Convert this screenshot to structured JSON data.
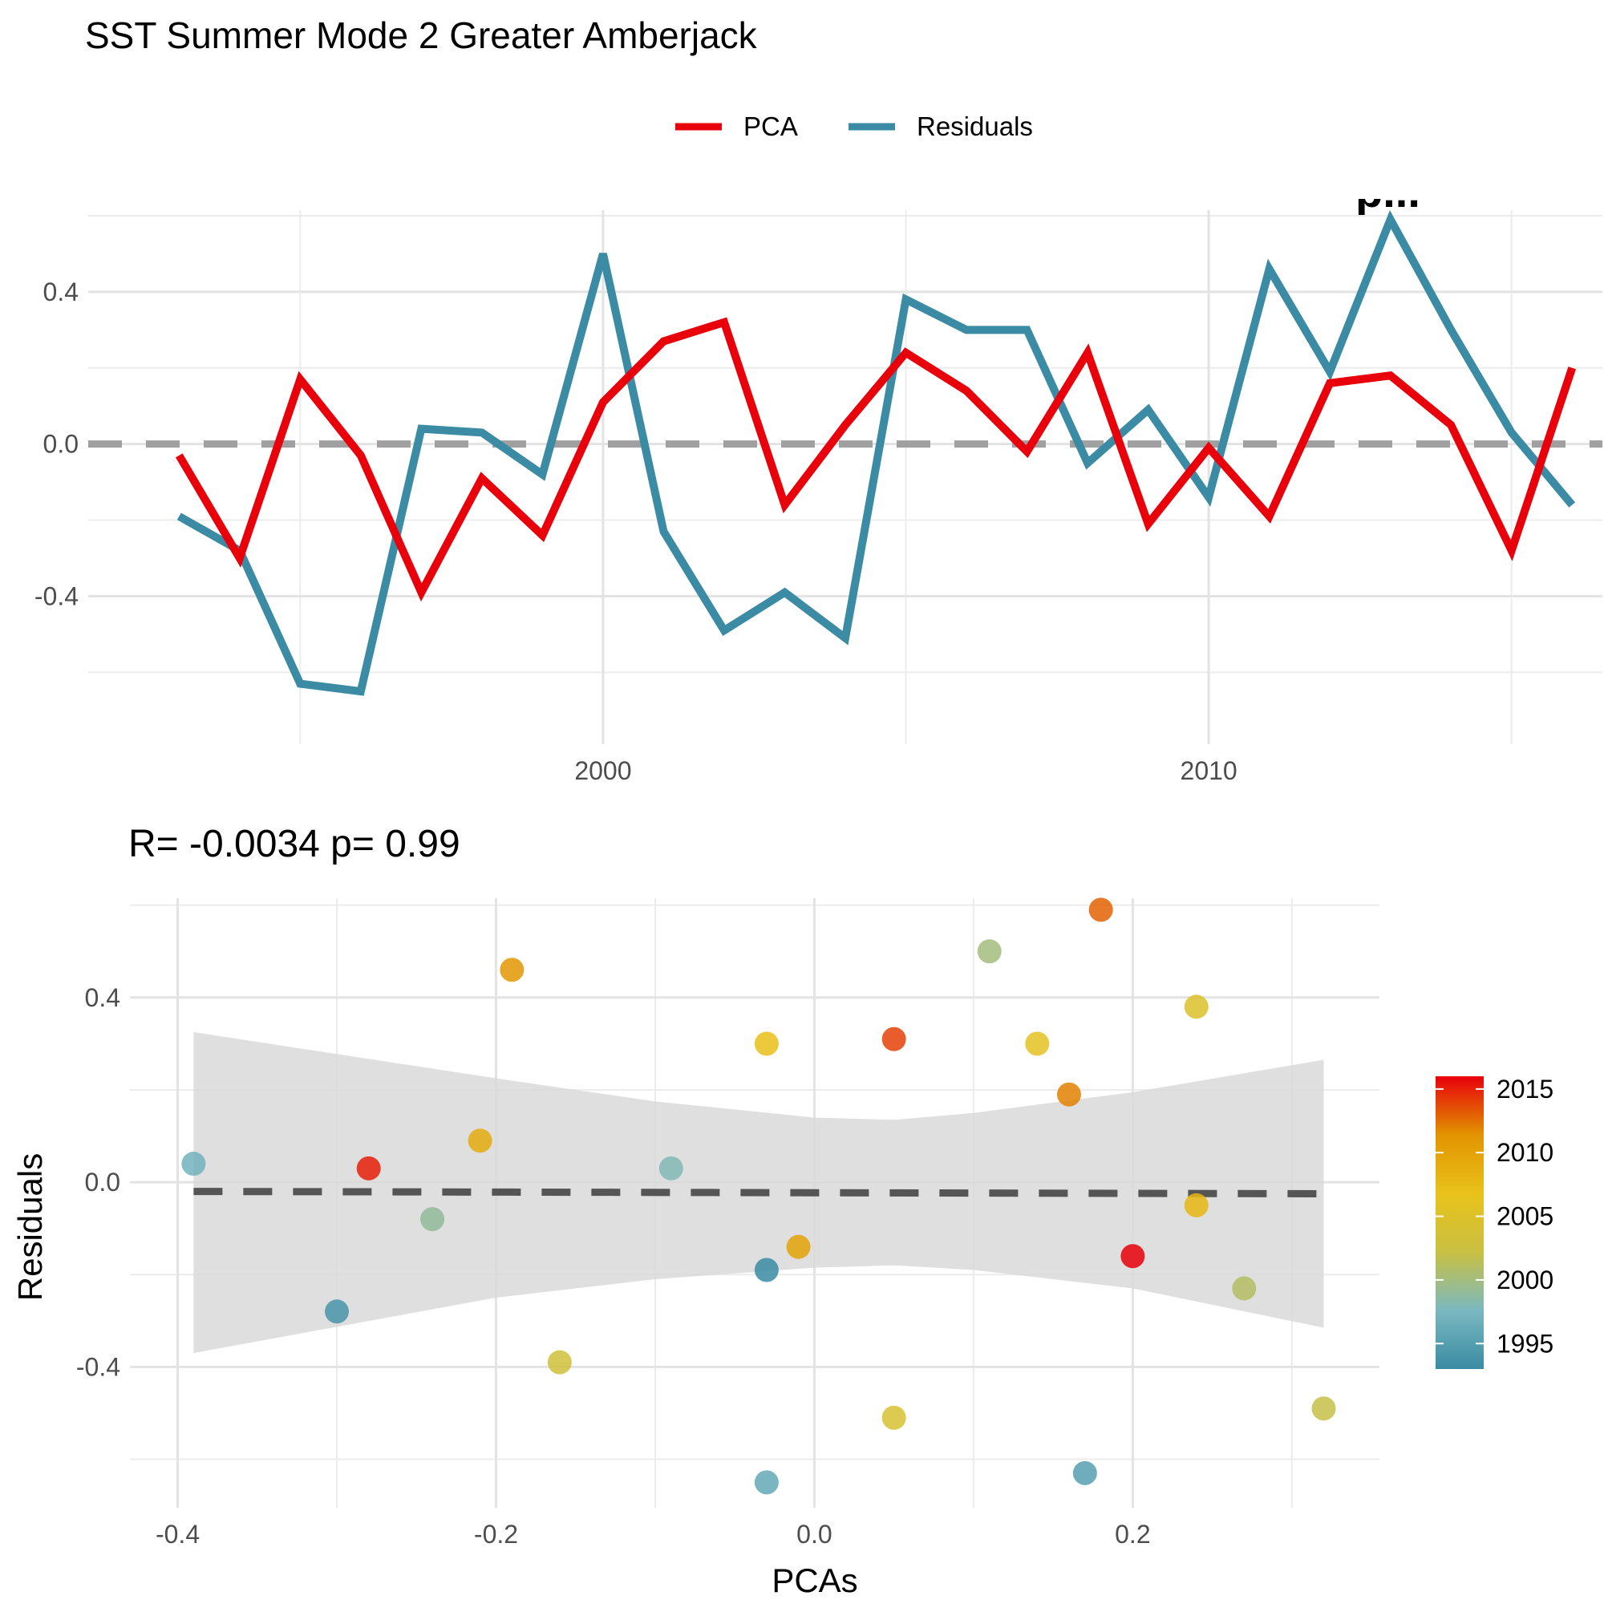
{
  "title": "SST Summer Mode 2 Greater Amberjack",
  "legend": {
    "items": [
      {
        "label": "PCA",
        "color": "#e8000b"
      },
      {
        "label": "Residuals",
        "color": "#3a8ba3"
      }
    ]
  },
  "corner_text": "p...",
  "stats_label": "R= -0.0034  p= 0.99",
  "chart_data": [
    {
      "type": "line",
      "x": [
        1993,
        1994,
        1995,
        1996,
        1997,
        1998,
        1999,
        2000,
        2001,
        2002,
        2003,
        2004,
        2005,
        2006,
        2007,
        2008,
        2009,
        2010,
        2011,
        2012,
        2013,
        2014,
        2015,
        2016
      ],
      "series": [
        {
          "name": "PCA",
          "color": "#e8000b",
          "values": [
            -0.03,
            -0.3,
            0.17,
            -0.03,
            -0.39,
            -0.09,
            -0.24,
            0.11,
            0.27,
            0.32,
            -0.16,
            0.05,
            0.24,
            0.14,
            -0.02,
            0.24,
            -0.21,
            -0.01,
            -0.19,
            0.16,
            0.18,
            0.05,
            -0.28,
            0.2
          ]
        },
        {
          "name": "Residuals",
          "color": "#3a8ba3",
          "values": [
            -0.19,
            -0.28,
            -0.63,
            -0.65,
            0.04,
            0.03,
            -0.08,
            0.5,
            -0.23,
            -0.49,
            -0.39,
            -0.51,
            0.38,
            0.3,
            0.3,
            -0.05,
            0.09,
            -0.14,
            0.46,
            0.19,
            0.59,
            0.3,
            0.03,
            -0.16
          ]
        }
      ],
      "reference_line": {
        "y": 0,
        "style": "dashed",
        "color": "#a0a0a0"
      },
      "x_ticks": [
        "2000",
        "2010"
      ],
      "y_ticks": [
        "-0.4",
        "0.0",
        "0.4"
      ],
      "xlim": [
        1991.5,
        2016.5
      ],
      "ylim": [
        -0.73,
        0.64
      ],
      "grid": true
    },
    {
      "type": "scatter",
      "xlabel": "PCAs",
      "ylabel": "Residuals",
      "x_ticks": [
        "-0.4",
        "-0.2",
        "0.0",
        "0.2"
      ],
      "y_ticks": [
        "-0.4",
        "0.0",
        "0.4"
      ],
      "xlim": [
        -0.43,
        0.355
      ],
      "ylim": [
        -0.705,
        0.615
      ],
      "grid": true,
      "points": [
        {
          "x": -0.03,
          "y": -0.19,
          "year": 1993
        },
        {
          "x": -0.3,
          "y": -0.28,
          "year": 1994
        },
        {
          "x": 0.17,
          "y": -0.63,
          "year": 1995
        },
        {
          "x": -0.03,
          "y": -0.65,
          "year": 1996
        },
        {
          "x": -0.39,
          "y": 0.04,
          "year": 1997
        },
        {
          "x": -0.09,
          "y": 0.03,
          "year": 1998
        },
        {
          "x": -0.24,
          "y": -0.08,
          "year": 1999
        },
        {
          "x": 0.11,
          "y": 0.5,
          "year": 2000
        },
        {
          "x": 0.27,
          "y": -0.23,
          "year": 2001
        },
        {
          "x": 0.32,
          "y": -0.49,
          "year": 2002
        },
        {
          "x": -0.16,
          "y": -0.39,
          "year": 2003
        },
        {
          "x": 0.05,
          "y": -0.51,
          "year": 2004
        },
        {
          "x": 0.24,
          "y": 0.38,
          "year": 2005
        },
        {
          "x": 0.14,
          "y": 0.3,
          "year": 2006
        },
        {
          "x": -0.03,
          "y": 0.3,
          "year": 2007
        },
        {
          "x": 0.24,
          "y": -0.05,
          "year": 2008
        },
        {
          "x": -0.21,
          "y": 0.09,
          "year": 2009
        },
        {
          "x": -0.01,
          "y": -0.14,
          "year": 2010
        },
        {
          "x": -0.19,
          "y": 0.46,
          "year": 2011
        },
        {
          "x": 0.16,
          "y": 0.19,
          "year": 2012
        },
        {
          "x": 0.18,
          "y": 0.59,
          "year": 2013
        },
        {
          "x": 0.05,
          "y": 0.31,
          "year": 2014
        },
        {
          "x": -0.28,
          "y": 0.03,
          "year": 2015
        },
        {
          "x": 0.2,
          "y": -0.16,
          "year": 2016
        }
      ],
      "fit_line": {
        "x": [
          -0.39,
          0.32
        ],
        "y": [
          -0.02,
          -0.025
        ],
        "style": "dashed",
        "color": "#555555"
      },
      "confidence_band": {
        "x": [
          -0.39,
          -0.2,
          -0.1,
          0.0,
          0.05,
          0.1,
          0.2,
          0.32
        ],
        "upper": [
          0.325,
          0.225,
          0.175,
          0.14,
          0.135,
          0.15,
          0.195,
          0.265
        ],
        "lower": [
          -0.37,
          -0.25,
          -0.21,
          -0.185,
          -0.18,
          -0.19,
          -0.23,
          -0.315
        ],
        "color": "#d9d9d9"
      },
      "colorbar": {
        "ticks": [
          "2015",
          "2010",
          "2005",
          "2000",
          "1995"
        ],
        "range": [
          1993,
          2016
        ],
        "gradient": [
          "#3a8ba3",
          "#7ab8c0",
          "#c9c042",
          "#e9c21a",
          "#e19400",
          "#e8000b"
        ]
      }
    }
  ]
}
